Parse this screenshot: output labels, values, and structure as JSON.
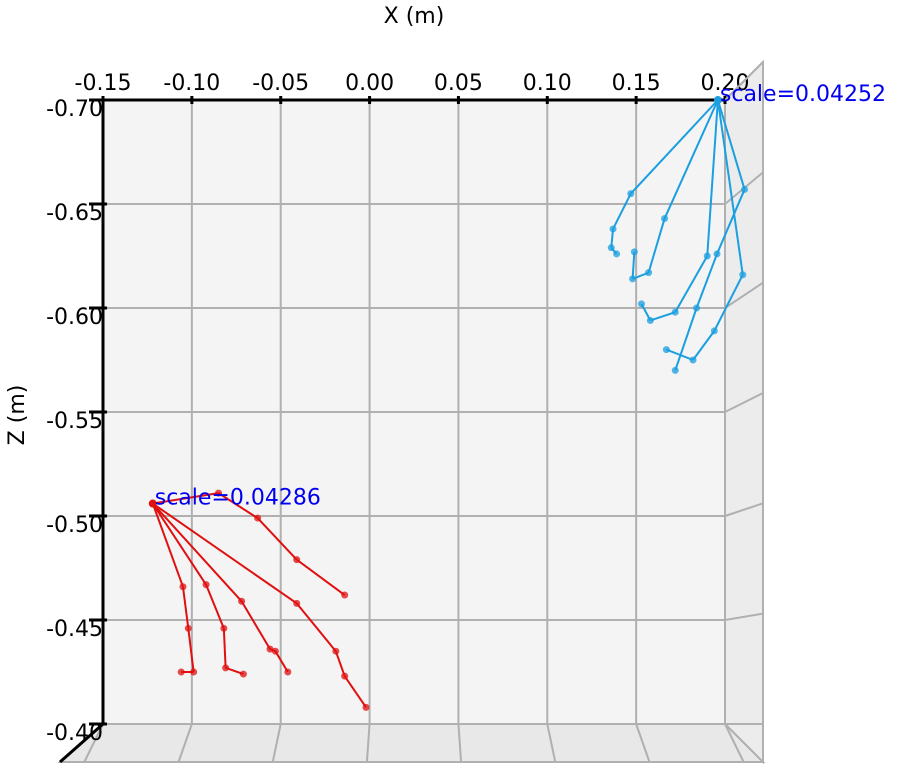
{
  "chart_data": {
    "type": "skeleton",
    "xlabel": "X (m)",
    "ylabel": "Z (m)",
    "xlim": [
      -0.15,
      0.2
    ],
    "ylim": [
      -0.7,
      -0.4
    ],
    "xticks": [
      -0.15,
      {
        "value": -0.1,
        "label": "-0.10"
      },
      -0.05,
      {
        "value": 0,
        "label": "0.00"
      },
      0.05,
      {
        "value": 0.1,
        "label": "0.10"
      },
      0.15,
      {
        "value": 0.2,
        "label": "0.20"
      }
    ],
    "yticks": [
      {
        "value": -0.7,
        "label": "-0.70"
      },
      -0.65,
      {
        "value": -0.6,
        "label": "-0.60"
      },
      -0.55,
      {
        "value": -0.5,
        "label": "-0.50"
      },
      -0.45,
      {
        "value": -0.4,
        "label": "-0.40"
      }
    ],
    "grid": true,
    "series": [
      {
        "color": "#1a9fe0",
        "annotation": "scale=0.04252",
        "wrist": {
          "x": 0.196,
          "y": -0.7
        },
        "fingers": [
          {
            "x": [
              0.211,
              0.1955,
              0.184,
              0.172
            ],
            "y": [
              -0.657,
              -0.626,
              -0.6,
              -0.57
            ]
          },
          {
            "x": [
              0.147,
              0.137,
              0.136,
              0.139
            ],
            "y": [
              -0.655,
              -0.638,
              -0.629,
              -0.626
            ]
          },
          {
            "x": [
              0.166,
              0.157,
              0.148,
              0.149
            ],
            "y": [
              -0.643,
              -0.617,
              -0.614,
              -0.627
            ]
          },
          {
            "x": [
              0.19,
              0.172,
              0.158,
              0.153
            ],
            "y": [
              -0.625,
              -0.598,
              -0.594,
              -0.602
            ]
          },
          {
            "x": [
              0.21,
              0.194,
              0.182,
              0.167
            ],
            "y": [
              -0.616,
              -0.589,
              -0.575,
              -0.58
            ]
          }
        ]
      },
      {
        "color": "#e01010",
        "annotation": "scale=0.04286",
        "wrist": {
          "x": -0.122,
          "y": -0.506
        },
        "fingers": [
          {
            "x": [
              -0.085,
              -0.063,
              -0.041,
              -0.014
            ],
            "y": [
              -0.511,
              -0.499,
              -0.479,
              -0.462
            ]
          },
          {
            "x": [
              -0.041,
              -0.019,
              -0.014,
              -0.002
            ],
            "y": [
              -0.458,
              -0.435,
              -0.423,
              -0.408
            ]
          },
          {
            "x": [
              -0.072,
              -0.056,
              -0.053,
              -0.046
            ],
            "y": [
              -0.459,
              -0.436,
              -0.435,
              -0.425
            ]
          },
          {
            "x": [
              -0.092,
              -0.082,
              -0.081,
              -0.071
            ],
            "y": [
              -0.467,
              -0.446,
              -0.427,
              -0.424
            ]
          },
          {
            "x": [
              -0.105,
              -0.102,
              -0.099,
              -0.106
            ],
            "y": [
              -0.466,
              -0.446,
              -0.425,
              -0.425
            ]
          }
        ]
      }
    ]
  }
}
